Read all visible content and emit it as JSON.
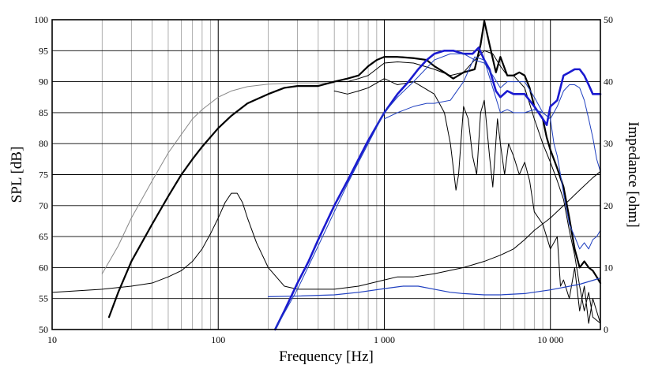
{
  "chart_data": {
    "type": "line",
    "xlabel": "Frequency [Hz]",
    "ylabel_left": "SPL [dB]",
    "ylabel_right": "Impedance [ohm]",
    "x_scale": "log",
    "xlim": [
      10,
      20000
    ],
    "ylim_left": [
      50,
      100
    ],
    "ylim_right": [
      0,
      50
    ],
    "grid": true,
    "legend": "none",
    "x_ticks": [
      {
        "value": 10,
        "label": "10"
      },
      {
        "value": 100,
        "label": "100"
      },
      {
        "value": 1000,
        "label": "1 000"
      },
      {
        "value": 10000,
        "label": "10 000"
      }
    ],
    "y_ticks_left": [
      {
        "value": 50,
        "label": "50"
      },
      {
        "value": 55,
        "label": "55"
      },
      {
        "value": 60,
        "label": "60"
      },
      {
        "value": 65,
        "label": "65"
      },
      {
        "value": 70,
        "label": "70"
      },
      {
        "value": 75,
        "label": "75"
      },
      {
        "value": 80,
        "label": "80"
      },
      {
        "value": 85,
        "label": "85"
      },
      {
        "value": 90,
        "label": "90"
      },
      {
        "value": 95,
        "label": "95"
      },
      {
        "value": 100,
        "label": "100"
      }
    ],
    "y_ticks_right": [
      {
        "value": 0,
        "label": "0"
      },
      {
        "value": 10,
        "label": "10"
      },
      {
        "value": 20,
        "label": "20"
      },
      {
        "value": 30,
        "label": "30"
      },
      {
        "value": 40,
        "label": "40"
      },
      {
        "value": 50,
        "label": "50"
      }
    ],
    "series": [
      {
        "color": "#888888",
        "width": 1.0,
        "axis": "left",
        "points": [
          [
            20,
            59
          ],
          [
            25,
            63.5
          ],
          [
            30,
            68
          ],
          [
            40,
            74
          ],
          [
            50,
            78.5
          ],
          [
            60,
            81.5
          ],
          [
            70,
            84
          ],
          [
            80,
            85.5
          ],
          [
            100,
            87.5
          ],
          [
            120,
            88.5
          ],
          [
            150,
            89.2
          ],
          [
            200,
            89.6
          ],
          [
            300,
            89.8
          ],
          [
            500,
            89.8
          ]
        ]
      },
      {
        "color": "#000000",
        "width": 2.2,
        "axis": "left",
        "points": [
          [
            22,
            52
          ],
          [
            25,
            56
          ],
          [
            30,
            61
          ],
          [
            40,
            67
          ],
          [
            50,
            71.5
          ],
          [
            60,
            75
          ],
          [
            70,
            77.5
          ],
          [
            80,
            79.5
          ],
          [
            100,
            82.5
          ],
          [
            120,
            84.5
          ],
          [
            150,
            86.5
          ],
          [
            200,
            88
          ],
          [
            250,
            89
          ],
          [
            300,
            89.3
          ],
          [
            400,
            89.3
          ],
          [
            500,
            90
          ],
          [
            600,
            90.5
          ],
          [
            700,
            91
          ],
          [
            800,
            92.5
          ],
          [
            900,
            93.5
          ],
          [
            1000,
            94
          ],
          [
            1200,
            94
          ],
          [
            1500,
            93.8
          ],
          [
            1800,
            93.5
          ],
          [
            2000,
            92.5
          ],
          [
            2300,
            91.5
          ],
          [
            2600,
            90.5
          ],
          [
            3000,
            91.5
          ],
          [
            3500,
            92
          ],
          [
            3800,
            96
          ],
          [
            4000,
            99.8
          ],
          [
            4300,
            96
          ],
          [
            4700,
            91.5
          ],
          [
            5000,
            94
          ],
          [
            5500,
            91
          ],
          [
            6000,
            91
          ],
          [
            6500,
            91.5
          ],
          [
            7000,
            91
          ],
          [
            7500,
            89
          ],
          [
            8000,
            86
          ],
          [
            9000,
            84
          ],
          [
            9500,
            81
          ],
          [
            10000,
            79
          ],
          [
            11000,
            76
          ],
          [
            12000,
            73
          ],
          [
            13000,
            68
          ],
          [
            14000,
            63
          ],
          [
            15000,
            60
          ],
          [
            16000,
            61
          ],
          [
            17000,
            60
          ],
          [
            18000,
            59.5
          ],
          [
            19000,
            58.5
          ],
          [
            20000,
            57.5
          ]
        ]
      },
      {
        "color": "#000000",
        "width": 1.0,
        "axis": "left",
        "points": [
          [
            500,
            90
          ],
          [
            600,
            90
          ],
          [
            700,
            90.5
          ],
          [
            800,
            91
          ],
          [
            1000,
            93
          ],
          [
            1200,
            93.2
          ],
          [
            1500,
            93
          ],
          [
            2000,
            92
          ],
          [
            2500,
            91
          ],
          [
            3000,
            91.5
          ],
          [
            3500,
            93.5
          ],
          [
            4000,
            95
          ],
          [
            4500,
            94.5
          ],
          [
            5000,
            92.5
          ],
          [
            5500,
            91
          ],
          [
            6000,
            91
          ],
          [
            7000,
            89
          ],
          [
            8000,
            84
          ],
          [
            9000,
            80
          ],
          [
            10000,
            77
          ],
          [
            11000,
            74
          ],
          [
            12000,
            71
          ],
          [
            13000,
            66
          ],
          [
            14000,
            62
          ],
          [
            15000,
            57
          ],
          [
            16000,
            53
          ],
          [
            17000,
            56
          ],
          [
            18000,
            52
          ],
          [
            20000,
            51
          ]
        ]
      },
      {
        "color": "#000000",
        "width": 1.0,
        "axis": "left",
        "points": [
          [
            500,
            88.5
          ],
          [
            600,
            88
          ],
          [
            700,
            88.5
          ],
          [
            800,
            89
          ],
          [
            1000,
            90.5
          ],
          [
            1200,
            89.5
          ],
          [
            1500,
            90
          ],
          [
            2000,
            88
          ],
          [
            2300,
            85
          ],
          [
            2500,
            80
          ],
          [
            2700,
            72.5
          ],
          [
            2800,
            75
          ],
          [
            3000,
            86
          ],
          [
            3200,
            84
          ],
          [
            3400,
            78
          ],
          [
            3600,
            75
          ],
          [
            3800,
            85
          ],
          [
            4000,
            87
          ],
          [
            4300,
            78
          ],
          [
            4500,
            73
          ],
          [
            4800,
            84
          ],
          [
            5000,
            80
          ],
          [
            5300,
            75
          ],
          [
            5600,
            80
          ],
          [
            6000,
            78
          ],
          [
            6500,
            75
          ],
          [
            7000,
            77
          ],
          [
            7500,
            74
          ],
          [
            8000,
            69
          ],
          [
            9000,
            67
          ],
          [
            10000,
            63
          ],
          [
            11000,
            65
          ],
          [
            11500,
            57
          ],
          [
            12000,
            58
          ],
          [
            13000,
            55
          ],
          [
            14000,
            60
          ],
          [
            15000,
            53
          ],
          [
            16000,
            57
          ],
          [
            17000,
            51
          ],
          [
            18000,
            55
          ],
          [
            20000,
            51
          ]
        ]
      },
      {
        "color": "#000000",
        "width": 1.0,
        "axis": "right",
        "points": [
          [
            10,
            6
          ],
          [
            20,
            6.5
          ],
          [
            30,
            7
          ],
          [
            40,
            7.5
          ],
          [
            50,
            8.5
          ],
          [
            60,
            9.5
          ],
          [
            70,
            11
          ],
          [
            80,
            13
          ],
          [
            90,
            15.5
          ],
          [
            100,
            18
          ],
          [
            110,
            20.5
          ],
          [
            120,
            22
          ],
          [
            130,
            22
          ],
          [
            140,
            20.5
          ],
          [
            150,
            18
          ],
          [
            170,
            14
          ],
          [
            200,
            10
          ],
          [
            250,
            7
          ],
          [
            300,
            6.5
          ],
          [
            400,
            6.5
          ],
          [
            500,
            6.5
          ],
          [
            700,
            7
          ],
          [
            1000,
            8
          ],
          [
            1200,
            8.5
          ],
          [
            1500,
            8.5
          ],
          [
            2000,
            9
          ],
          [
            3000,
            10
          ],
          [
            4000,
            11
          ],
          [
            5000,
            12
          ],
          [
            6000,
            13
          ],
          [
            7000,
            14.5
          ],
          [
            8000,
            16
          ],
          [
            10000,
            18
          ],
          [
            12000,
            20
          ],
          [
            15000,
            22.5
          ],
          [
            18000,
            24.5
          ],
          [
            20000,
            25.5
          ]
        ]
      },
      {
        "color": "#2040c0",
        "width": 1.2,
        "axis": "right",
        "points": [
          [
            200,
            5.3
          ],
          [
            300,
            5.4
          ],
          [
            500,
            5.6
          ],
          [
            700,
            6
          ],
          [
            1000,
            6.6
          ],
          [
            1300,
            7
          ],
          [
            1600,
            7
          ],
          [
            2000,
            6.5
          ],
          [
            2500,
            6
          ],
          [
            3000,
            5.8
          ],
          [
            4000,
            5.6
          ],
          [
            5000,
            5.6
          ],
          [
            7000,
            5.8
          ],
          [
            10000,
            6.4
          ],
          [
            15000,
            7.3
          ],
          [
            20000,
            8.3
          ]
        ]
      },
      {
        "color": "#1a1ad0",
        "width": 2.6,
        "axis": "left",
        "points": [
          [
            220,
            50
          ],
          [
            250,
            53
          ],
          [
            300,
            57.5
          ],
          [
            350,
            61
          ],
          [
            400,
            64.5
          ],
          [
            500,
            70
          ],
          [
            600,
            74
          ],
          [
            700,
            77.5
          ],
          [
            800,
            80.5
          ],
          [
            1000,
            85
          ],
          [
            1200,
            88
          ],
          [
            1400,
            90
          ],
          [
            1600,
            92
          ],
          [
            1800,
            93.5
          ],
          [
            2000,
            94.5
          ],
          [
            2300,
            95
          ],
          [
            2600,
            95
          ],
          [
            3000,
            94.5
          ],
          [
            3400,
            94.5
          ],
          [
            3700,
            95.5
          ],
          [
            4000,
            93.5
          ],
          [
            4300,
            92
          ],
          [
            4700,
            88.5
          ],
          [
            5000,
            87.5
          ],
          [
            5500,
            88.5
          ],
          [
            6000,
            88
          ],
          [
            7000,
            88
          ],
          [
            8000,
            86
          ],
          [
            9000,
            84
          ],
          [
            9500,
            83
          ],
          [
            10000,
            86
          ],
          [
            11000,
            87
          ],
          [
            12000,
            91
          ],
          [
            13000,
            91.5
          ],
          [
            14000,
            92
          ],
          [
            15000,
            92
          ],
          [
            16000,
            91
          ],
          [
            17000,
            89.5
          ],
          [
            18000,
            88
          ],
          [
            19000,
            88
          ],
          [
            20000,
            88
          ]
        ]
      },
      {
        "color": "#2040c0",
        "width": 1.0,
        "axis": "left",
        "points": [
          [
            1000,
            84
          ],
          [
            1200,
            85
          ],
          [
            1500,
            86
          ],
          [
            1800,
            86.5
          ],
          [
            2000,
            86.5
          ],
          [
            2500,
            87
          ],
          [
            3000,
            90
          ],
          [
            3500,
            94
          ],
          [
            4000,
            93.5
          ],
          [
            4500,
            89
          ],
          [
            5000,
            85
          ],
          [
            5500,
            85.5
          ],
          [
            6000,
            85
          ],
          [
            7000,
            85
          ],
          [
            8000,
            85.5
          ],
          [
            9000,
            85
          ],
          [
            10000,
            84
          ],
          [
            11000,
            86
          ],
          [
            12000,
            88.5
          ],
          [
            13000,
            89.5
          ],
          [
            14000,
            89.5
          ],
          [
            15000,
            89
          ],
          [
            16000,
            87
          ],
          [
            17000,
            84
          ],
          [
            18000,
            81
          ],
          [
            19000,
            77.5
          ],
          [
            20000,
            75.5
          ]
        ]
      },
      {
        "color": "#2040c0",
        "width": 1.0,
        "axis": "left",
        "points": [
          [
            220,
            50
          ],
          [
            300,
            56.5
          ],
          [
            400,
            63.5
          ],
          [
            500,
            69
          ],
          [
            600,
            73.5
          ],
          [
            700,
            77
          ],
          [
            800,
            80
          ],
          [
            1000,
            85
          ],
          [
            1200,
            87.5
          ],
          [
            1500,
            90
          ],
          [
            2000,
            93.5
          ],
          [
            2500,
            94.5
          ],
          [
            3000,
            94.5
          ],
          [
            3500,
            93.5
          ],
          [
            4000,
            93
          ],
          [
            4500,
            91
          ],
          [
            5000,
            89
          ],
          [
            5500,
            90
          ],
          [
            6000,
            90
          ],
          [
            7000,
            90
          ],
          [
            8000,
            87.5
          ],
          [
            9000,
            85
          ],
          [
            10000,
            84
          ],
          [
            10500,
            80
          ],
          [
            11000,
            78
          ],
          [
            11500,
            75
          ],
          [
            12000,
            72
          ],
          [
            13000,
            67
          ],
          [
            14000,
            65
          ],
          [
            15000,
            63
          ],
          [
            16000,
            64
          ],
          [
            17000,
            63
          ],
          [
            18000,
            64.5
          ],
          [
            19000,
            65
          ],
          [
            20000,
            66
          ]
        ]
      }
    ]
  }
}
